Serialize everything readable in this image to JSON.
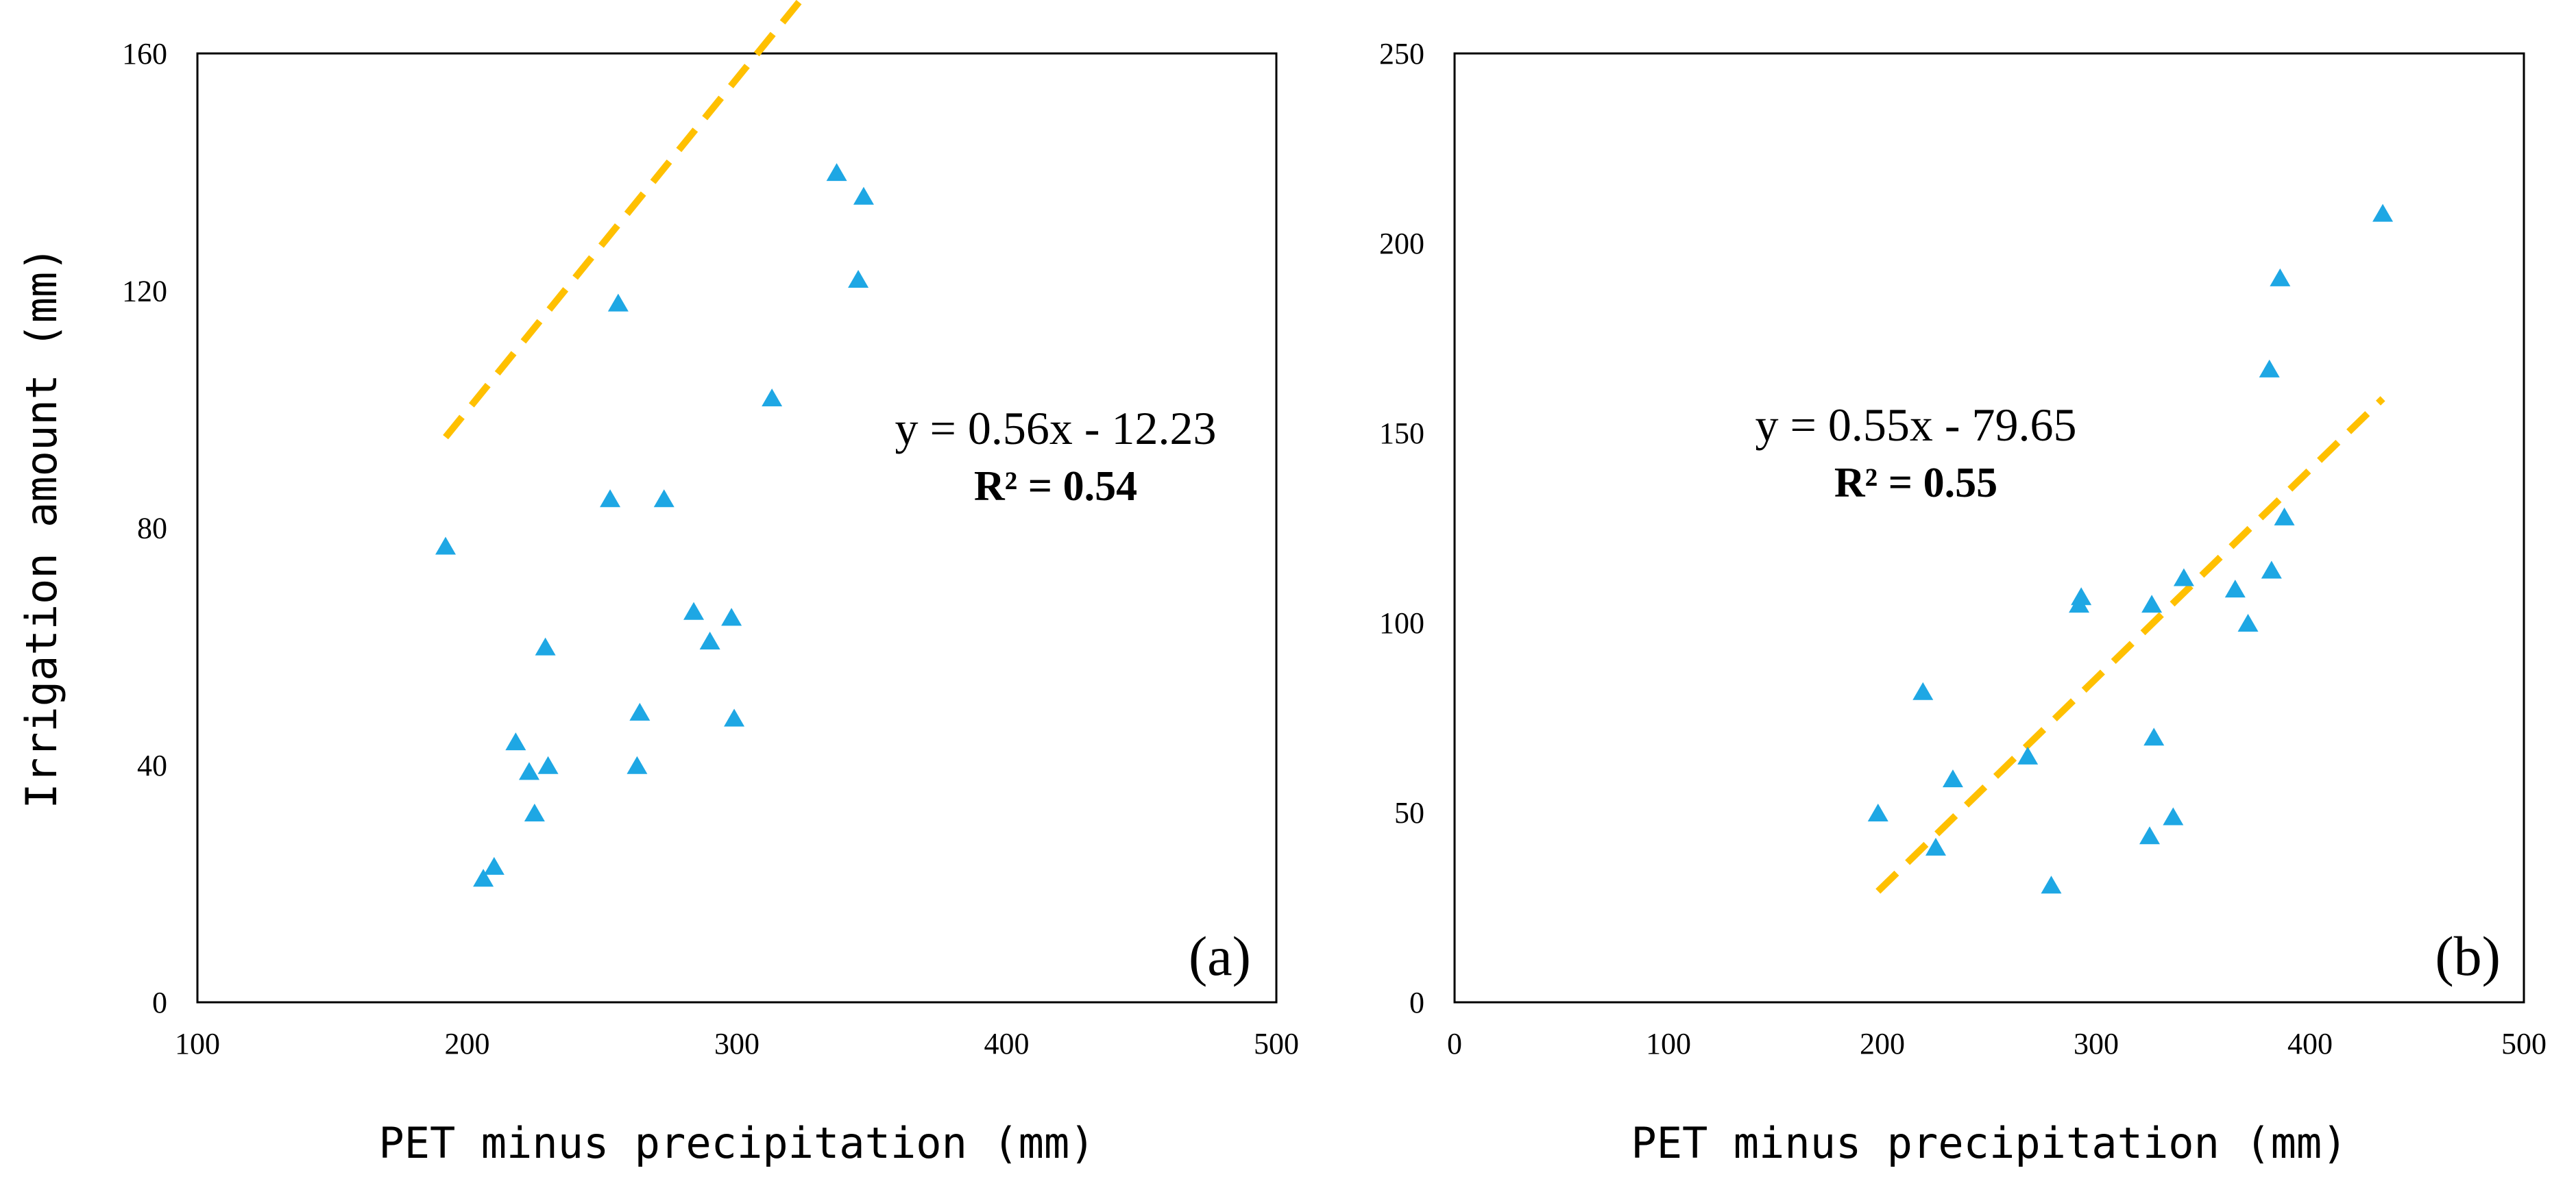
{
  "chart_data": [
    {
      "type": "scatter",
      "panel_label": "(a)",
      "title": "",
      "xlabel": "PET minus precipitation (mm)",
      "ylabel": "Irrigation amount (mm)",
      "xlim": [
        100,
        500
      ],
      "ylim": [
        0,
        160
      ],
      "xticks": [
        100,
        200,
        300,
        400,
        500
      ],
      "yticks": [
        0,
        40,
        80,
        120,
        160
      ],
      "grid": false,
      "marker_color": "#1ea7e4",
      "trend_color": "#ffc000",
      "points": [
        {
          "x": 192,
          "y": 77
        },
        {
          "x": 206,
          "y": 21
        },
        {
          "x": 210,
          "y": 23
        },
        {
          "x": 218,
          "y": 44
        },
        {
          "x": 223,
          "y": 39
        },
        {
          "x": 225,
          "y": 32
        },
        {
          "x": 229,
          "y": 60
        },
        {
          "x": 230,
          "y": 40
        },
        {
          "x": 253,
          "y": 85
        },
        {
          "x": 256,
          "y": 118
        },
        {
          "x": 263,
          "y": 40
        },
        {
          "x": 264,
          "y": 49
        },
        {
          "x": 273,
          "y": 85
        },
        {
          "x": 284,
          "y": 66
        },
        {
          "x": 290,
          "y": 61
        },
        {
          "x": 298,
          "y": 65
        },
        {
          "x": 299,
          "y": 48
        },
        {
          "x": 313,
          "y": 102
        },
        {
          "x": 337,
          "y": 140
        },
        {
          "x": 345,
          "y": 122
        },
        {
          "x": 347,
          "y": 136
        }
      ],
      "trendline": {
        "slope": 0.56,
        "intercept": -12.23,
        "x_range": [
          192,
          347
        ]
      },
      "equation": "y = 0.56x - 12.23",
      "r_squared": "R² = 0.54"
    },
    {
      "type": "scatter",
      "panel_label": "(b)",
      "title": "",
      "xlabel": "PET minus precipitation (mm)",
      "ylabel": "",
      "xlim": [
        0,
        500
      ],
      "ylim": [
        0,
        250
      ],
      "xticks": [
        0,
        100,
        200,
        300,
        400,
        500
      ],
      "yticks": [
        0,
        50,
        100,
        150,
        200,
        250
      ],
      "grid": false,
      "marker_color": "#1ea7e4",
      "trend_color": "#ffc000",
      "points": [
        {
          "x": 198,
          "y": 50
        },
        {
          "x": 219,
          "y": 82
        },
        {
          "x": 225,
          "y": 41
        },
        {
          "x": 233,
          "y": 59
        },
        {
          "x": 268,
          "y": 65
        },
        {
          "x": 279,
          "y": 31
        },
        {
          "x": 292,
          "y": 105
        },
        {
          "x": 293,
          "y": 107
        },
        {
          "x": 325,
          "y": 44
        },
        {
          "x": 326,
          "y": 105
        },
        {
          "x": 327,
          "y": 70
        },
        {
          "x": 336,
          "y": 49
        },
        {
          "x": 341,
          "y": 112
        },
        {
          "x": 365,
          "y": 109
        },
        {
          "x": 371,
          "y": 100
        },
        {
          "x": 381,
          "y": 167
        },
        {
          "x": 382,
          "y": 114
        },
        {
          "x": 386,
          "y": 191
        },
        {
          "x": 388,
          "y": 128
        },
        {
          "x": 434,
          "y": 208
        }
      ],
      "trendline": {
        "slope": 0.55,
        "intercept": -79.65,
        "x_range": [
          198,
          434
        ]
      },
      "equation": "y = 0.55x - 79.65",
      "r_squared": "R² = 0.55"
    }
  ]
}
